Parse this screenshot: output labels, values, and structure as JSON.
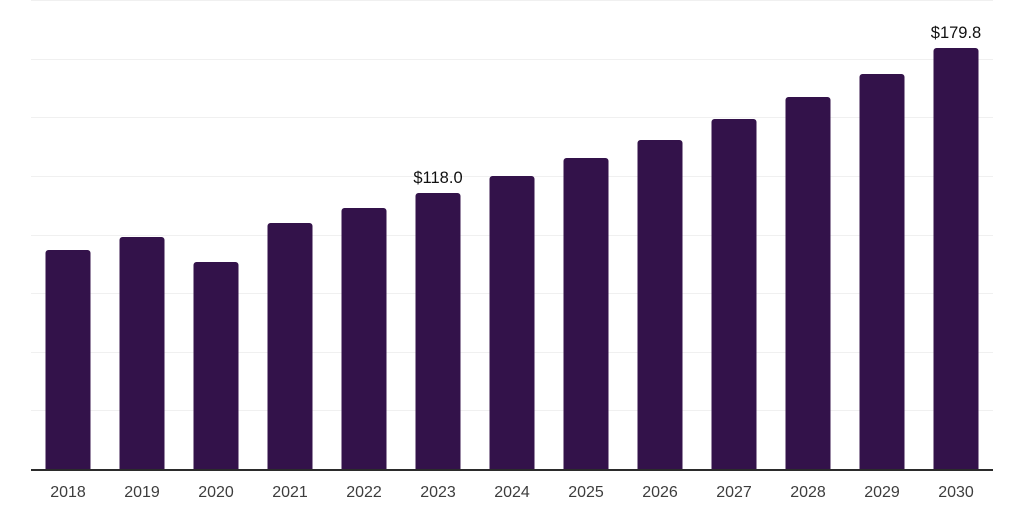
{
  "chart_data": {
    "type": "bar",
    "title": "",
    "xlabel": "",
    "ylabel": "",
    "categories": [
      "2018",
      "2019",
      "2020",
      "2021",
      "2022",
      "2023",
      "2024",
      "2025",
      "2026",
      "2027",
      "2028",
      "2029",
      "2030"
    ],
    "values": [
      94.0,
      99.5,
      88.8,
      105.3,
      111.7,
      118.0,
      125.3,
      132.9,
      140.9,
      149.7,
      159.0,
      168.9,
      179.8
    ],
    "value_labels": {
      "2023": "$118.0",
      "2030": "$179.8"
    },
    "ylim": [
      0,
      200
    ],
    "grid_step": 25,
    "grid": true,
    "legend": false,
    "colors": {
      "bar": "#33124a",
      "axis_line": "#2b2b2b",
      "gridline": "#f0f0f0",
      "tick_label": "#3d3d3d",
      "value_label": "#111111",
      "background": "#ffffff"
    }
  }
}
